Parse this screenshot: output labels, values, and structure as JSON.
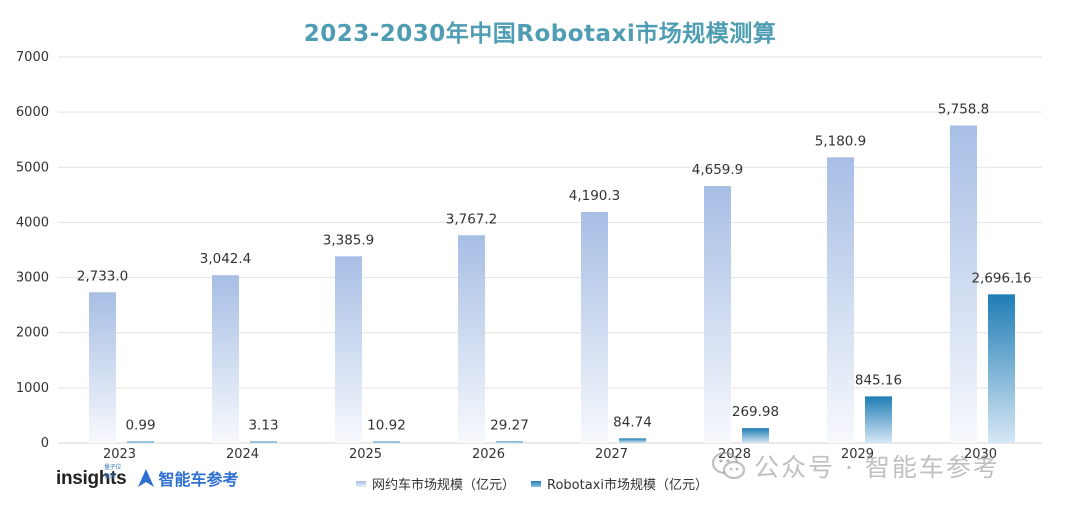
{
  "title": "2023-2030年中国Robotaxi市场规模测算",
  "chart_data": {
    "type": "bar",
    "title": "2023-2030年中国Robotaxi市场规模测算",
    "categories": [
      "2023",
      "2024",
      "2025",
      "2026",
      "2027",
      "2028",
      "2029",
      "2030"
    ],
    "series": [
      {
        "name": "网约车市场规模（亿元）",
        "values": [
          2733.0,
          3042.4,
          3385.9,
          3767.2,
          4190.3,
          4659.9,
          5180.9,
          5758.8
        ],
        "labels": [
          "2,733.0",
          "3,042.4",
          "3,385.9",
          "3,767.2",
          "4,190.3",
          "4,659.9",
          "5,180.9",
          "5,758.8"
        ]
      },
      {
        "name": "Robotaxi市场规模（亿元）",
        "values": [
          0.99,
          3.13,
          10.92,
          29.27,
          84.74,
          269.98,
          845.16,
          2696.16
        ],
        "labels": [
          "0.99",
          "3.13",
          "10.92",
          "29.27",
          "84.74",
          "269.98",
          "845.16",
          "2,696.16"
        ]
      }
    ],
    "yticks": [
      "0",
      "1000",
      "2000",
      "3000",
      "4000",
      "5000",
      "6000",
      "7000"
    ],
    "ylim": [
      0,
      7000
    ],
    "grid": true,
    "legend": "bottom-center",
    "colors": {
      "series1_top": "#a7bee4",
      "series1_bottom": "#f7f9fd",
      "series2_top": "#1f7db5",
      "series2_bottom": "#d6e8f5",
      "grid": "#e3e3e3",
      "title": "#4f9db3"
    }
  },
  "brand": {
    "insights": "insights",
    "insights_tag": "量子位智库",
    "name": "智能车参考"
  },
  "watermark": {
    "text": "公众号 · 智能车参考"
  }
}
